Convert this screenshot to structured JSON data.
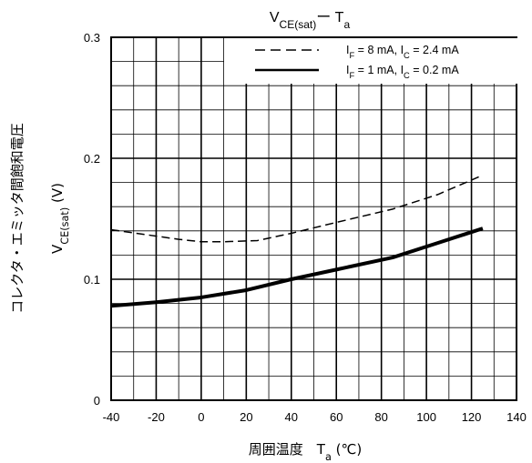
{
  "chart_data": {
    "type": "line",
    "title": "VCE(sat)ー Ta",
    "xlabel": "周囲温度　Ta (℃)",
    "ylabel_jp": "コレクタ・エミッタ間飽和電圧",
    "ylabel_sym": "VCE(sat) (V)",
    "xlim": [
      -40,
      140
    ],
    "ylim": [
      0,
      0.3
    ],
    "x_ticks": [
      "-40",
      "-20",
      "0",
      "20",
      "40",
      "60",
      "80",
      "100",
      "120",
      "140"
    ],
    "y_ticks": [
      "0",
      "0.1",
      "0.2",
      "0.3"
    ],
    "grid": true,
    "legend_position": "top-right",
    "series": [
      {
        "name": "IF = 8 mA, IC = 2.4 mA",
        "style": "dashed",
        "color": "#000000",
        "x": [
          -40,
          -25,
          -10,
          0,
          10,
          25,
          40,
          60,
          85,
          105,
          125
        ],
        "y": [
          0.141,
          0.137,
          0.133,
          0.131,
          0.131,
          0.132,
          0.138,
          0.147,
          0.158,
          0.17,
          0.186
        ]
      },
      {
        "name": "IF = 1 mA, IC = 0.2 mA",
        "style": "solid",
        "color": "#000000",
        "x": [
          -40,
          -20,
          0,
          20,
          40,
          60,
          85,
          105,
          125
        ],
        "y": [
          0.078,
          0.081,
          0.085,
          0.091,
          0.1,
          0.108,
          0.118,
          0.13,
          0.142
        ]
      }
    ]
  }
}
